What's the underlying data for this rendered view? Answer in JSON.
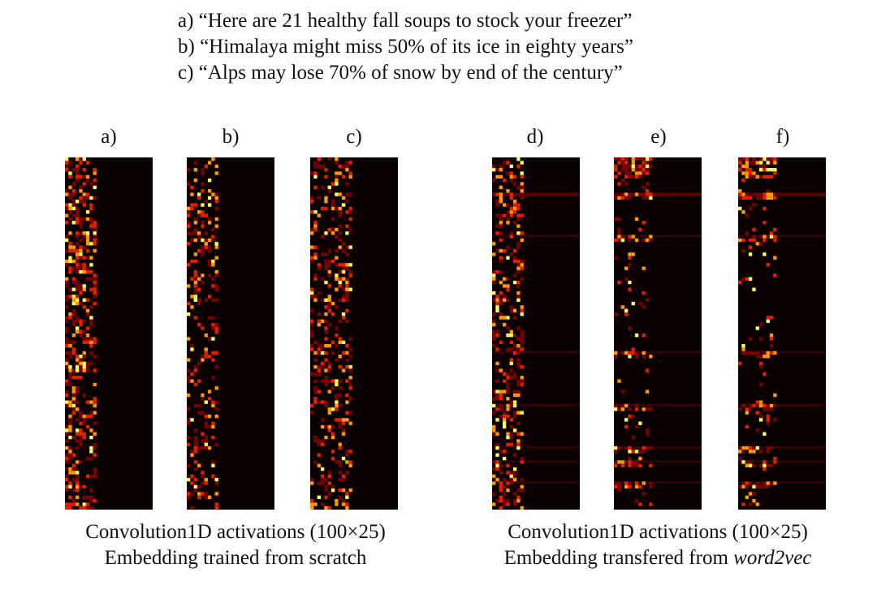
{
  "sentences": [
    "a) “Here are 21 healthy fall soups to stock your freezer”",
    "b) “Himalaya might miss 50% of its ice in eighty years”",
    "c) “Alps may lose 70% of snow by end of the century”"
  ],
  "panels": [
    {
      "label": "a)",
      "group": "scratch",
      "pattern": "scratch-dense"
    },
    {
      "label": "b)",
      "group": "scratch",
      "pattern": "scratch-sparse"
    },
    {
      "label": "c)",
      "group": "scratch",
      "pattern": "scratch-scatter"
    },
    {
      "label": "d)",
      "group": "word2vec",
      "pattern": "w2v-d"
    },
    {
      "label": "e)",
      "group": "word2vec",
      "pattern": "w2v-ef"
    },
    {
      "label": "f)",
      "group": "word2vec",
      "pattern": "w2v-ef"
    }
  ],
  "heatmap": {
    "rows": 100,
    "cols": 25,
    "colormap": "hot",
    "colors": {
      "background": "#0a0000",
      "low": "#7a0000",
      "mid": "#e02000",
      "high": "#ff9a00",
      "peak": "#ffff60"
    }
  },
  "left_caption": {
    "line1": "Convolution1D activations (100×25)",
    "line2": "Embedding trained from scratch"
  },
  "right_caption": {
    "line1": "Convolution1D activations (100×25)",
    "line2_prefix": "Embedding transfered from ",
    "line2_em": "word2vec"
  }
}
